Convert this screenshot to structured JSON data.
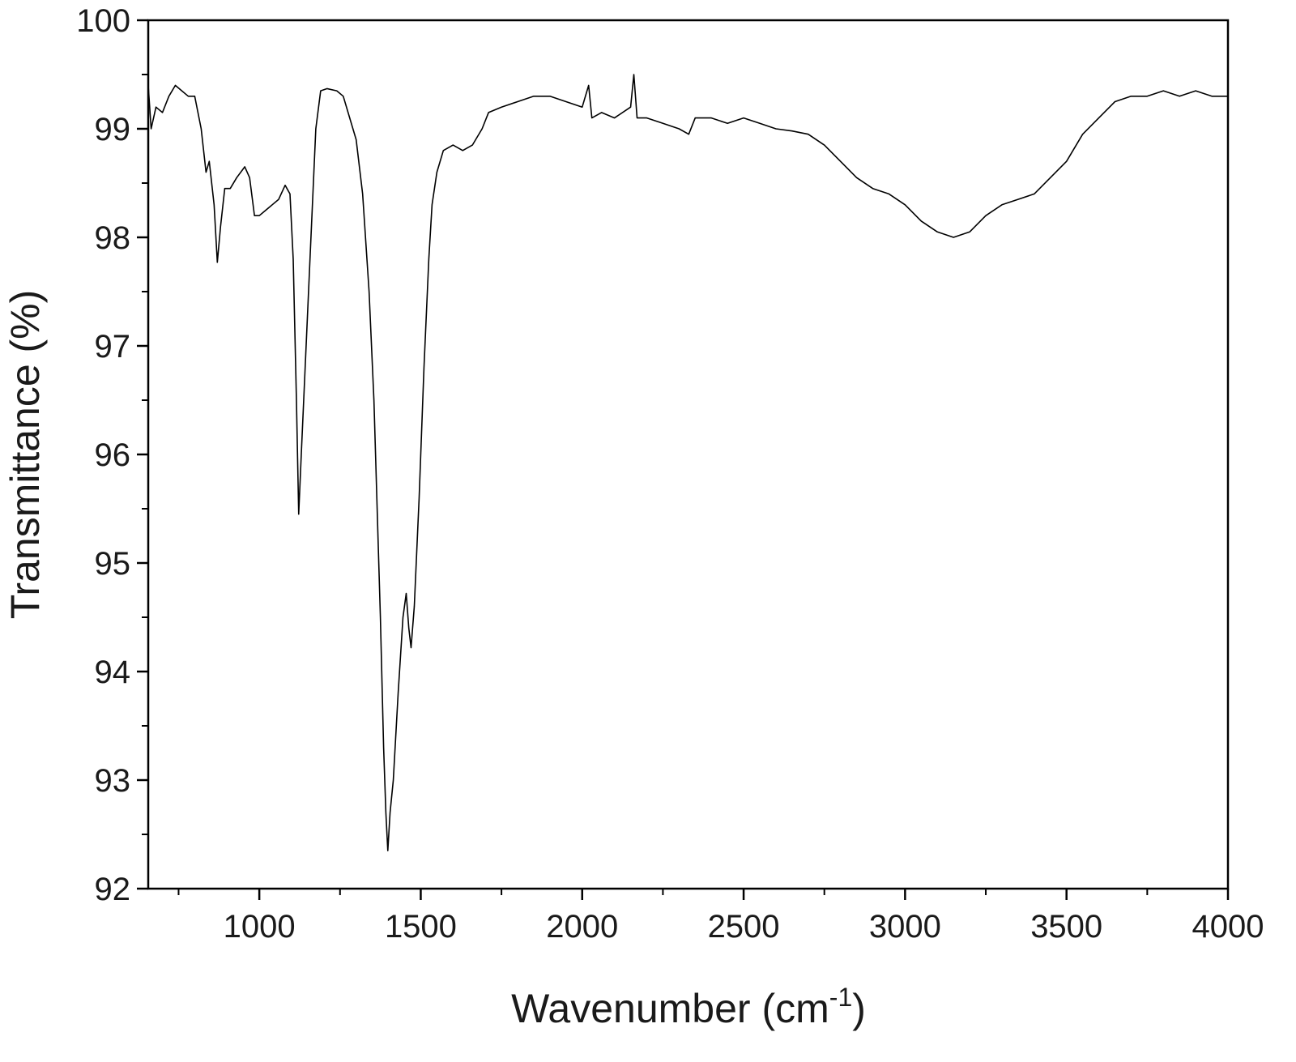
{
  "chart_data": {
    "type": "line",
    "xlabel": {
      "text": "Wavenumber (cm",
      "superscript": "-1",
      "close": ")"
    },
    "ylabel": "Transmittance (%)",
    "xlim": [
      656,
      4000
    ],
    "ylim": [
      92,
      100
    ],
    "xticks": [
      1000,
      1500,
      2000,
      2500,
      3000,
      3500,
      4000
    ],
    "xminor": [
      750,
      1250,
      1750,
      2250,
      2750,
      3250,
      3750
    ],
    "yticks": [
      92,
      93,
      94,
      95,
      96,
      97,
      98,
      99,
      100
    ],
    "yminor": [
      92.5,
      93.5,
      94.5,
      95.5,
      96.5,
      97.5,
      98.5,
      99.5
    ],
    "color": "#000000",
    "grid": false,
    "x": [
      656,
      665,
      680,
      700,
      720,
      740,
      760,
      780,
      800,
      820,
      835,
      845,
      860,
      870,
      880,
      893,
      910,
      930,
      955,
      970,
      985,
      1000,
      1020,
      1040,
      1060,
      1080,
      1095,
      1105,
      1115,
      1122,
      1130,
      1145,
      1160,
      1175,
      1190,
      1210,
      1240,
      1260,
      1280,
      1300,
      1320,
      1340,
      1355,
      1365,
      1375,
      1385,
      1392,
      1398,
      1405,
      1415,
      1430,
      1445,
      1455,
      1463,
      1470,
      1480,
      1495,
      1510,
      1525,
      1535,
      1550,
      1570,
      1600,
      1630,
      1660,
      1690,
      1710,
      1750,
      1800,
      1850,
      1900,
      1950,
      2000,
      2020,
      2030,
      2060,
      2100,
      2150,
      2160,
      2170,
      2200,
      2250,
      2300,
      2330,
      2350,
      2400,
      2450,
      2500,
      2550,
      2600,
      2650,
      2700,
      2750,
      2800,
      2850,
      2900,
      2950,
      3000,
      3050,
      3100,
      3150,
      3200,
      3250,
      3300,
      3350,
      3400,
      3450,
      3500,
      3550,
      3600,
      3650,
      3700,
      3750,
      3800,
      3850,
      3900,
      3950,
      4000
    ],
    "values": [
      99.4,
      99.0,
      99.2,
      99.15,
      99.3,
      99.4,
      99.35,
      99.3,
      99.3,
      99.0,
      98.6,
      98.7,
      98.3,
      97.77,
      98.1,
      98.45,
      98.45,
      98.55,
      98.65,
      98.55,
      98.2,
      98.2,
      98.25,
      98.3,
      98.35,
      98.48,
      98.4,
      97.8,
      96.5,
      95.45,
      96.0,
      97.0,
      98.0,
      99.0,
      99.35,
      99.37,
      99.35,
      99.3,
      99.1,
      98.9,
      98.4,
      97.5,
      96.5,
      95.5,
      94.5,
      93.3,
      92.7,
      92.35,
      92.7,
      93.0,
      93.8,
      94.5,
      94.72,
      94.4,
      94.22,
      94.6,
      95.6,
      96.8,
      97.8,
      98.3,
      98.6,
      98.8,
      98.85,
      98.8,
      98.85,
      99.0,
      99.15,
      99.2,
      99.25,
      99.3,
      99.3,
      99.25,
      99.2,
      99.4,
      99.1,
      99.15,
      99.1,
      99.2,
      99.5,
      99.1,
      99.1,
      99.05,
      99.0,
      98.95,
      99.1,
      99.1,
      99.05,
      99.1,
      99.05,
      99.0,
      98.98,
      98.95,
      98.85,
      98.7,
      98.55,
      98.45,
      98.4,
      98.3,
      98.15,
      98.05,
      98.0,
      98.05,
      98.2,
      98.3,
      98.35,
      98.4,
      98.55,
      98.7,
      98.95,
      99.1,
      99.25,
      99.3,
      99.3,
      99.35,
      99.3,
      99.35,
      99.3,
      99.3
    ]
  }
}
